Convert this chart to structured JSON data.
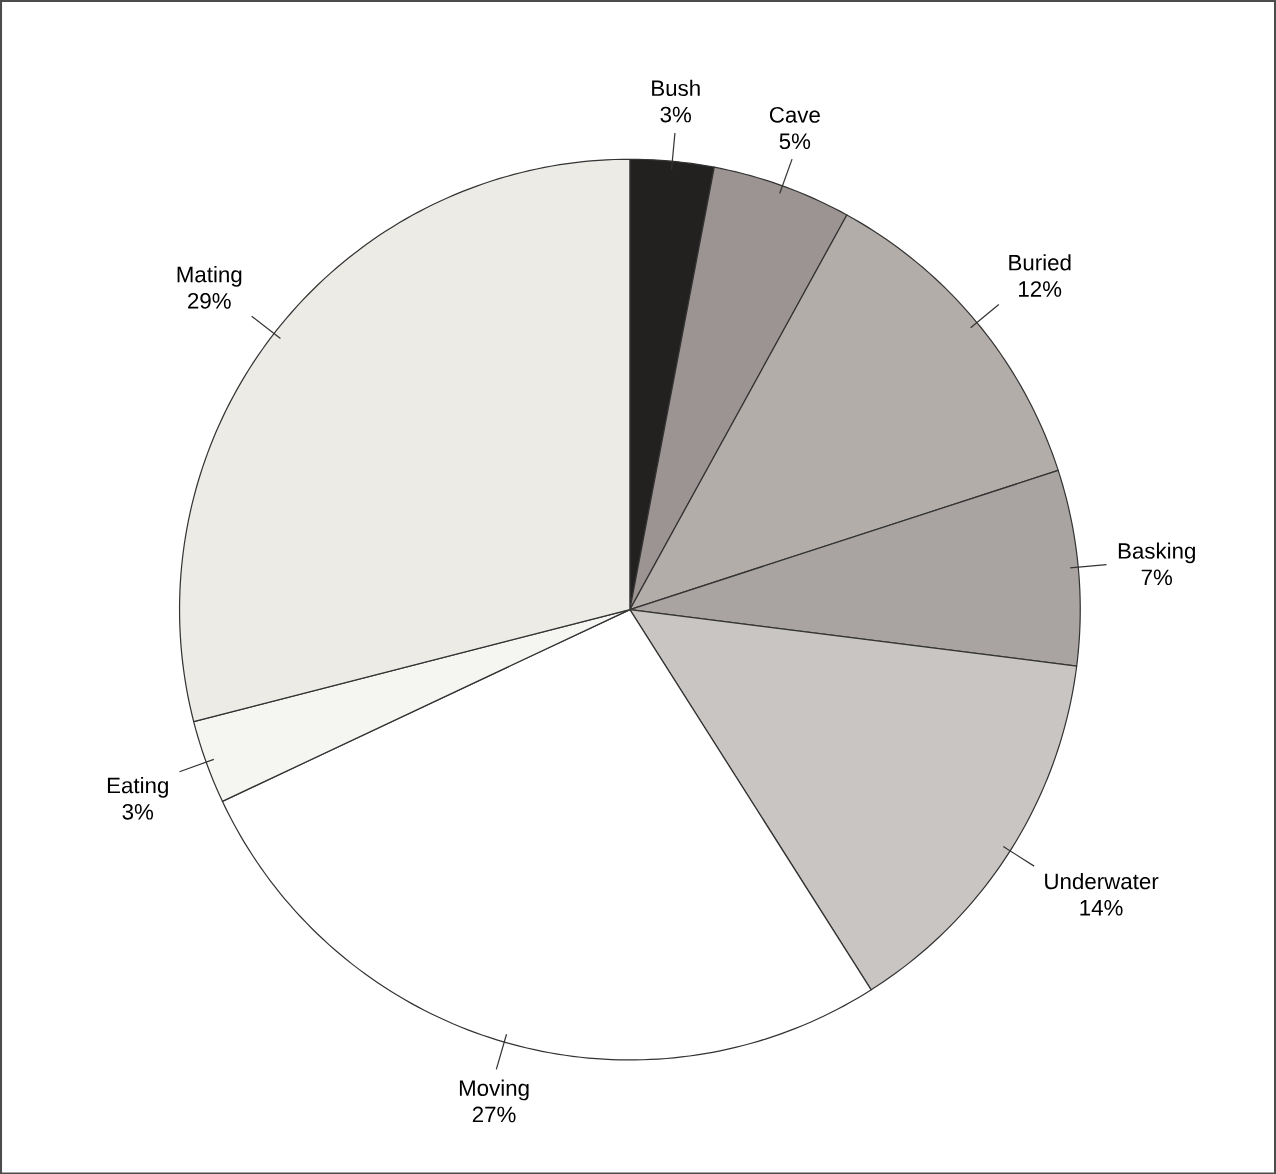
{
  "chart_data": {
    "type": "pie",
    "categories": [
      "Bush",
      "Cave",
      "Buried",
      "Basking",
      "Underwater",
      "Moving",
      "Eating",
      "Mating"
    ],
    "values": [
      3,
      5,
      12,
      7,
      14,
      27,
      3,
      29
    ],
    "value_labels": [
      "3%",
      "5%",
      "12%",
      "7%",
      "14%",
      "27%",
      "3%",
      "29%"
    ],
    "colors": [
      "#232020",
      "#9c9492",
      "#b3adaa",
      "#a9a4a1",
      "#c9c5c2",
      "#ffffff",
      "#f5f5f1",
      "#ecebe5"
    ]
  }
}
